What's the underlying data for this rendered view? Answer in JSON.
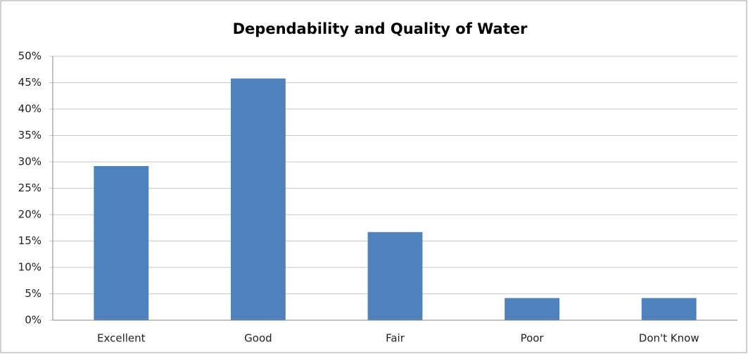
{
  "chart_data": {
    "type": "bar",
    "title": "Dependability and Quality of Water",
    "categories": [
      "Excellent",
      "Good",
      "Fair",
      "Poor",
      "Don't Know"
    ],
    "values": [
      29.2,
      45.8,
      16.7,
      4.2,
      4.2
    ],
    "color": "#4f81bd",
    "ylim": [
      0,
      50
    ],
    "yticks": [
      {
        "value": 0,
        "label": "0%"
      },
      {
        "value": 5,
        "label": "5%"
      },
      {
        "value": 10,
        "label": "10%"
      },
      {
        "value": 15,
        "label": "15%"
      },
      {
        "value": 20,
        "label": "20%"
      },
      {
        "value": 25,
        "label": "25%"
      },
      {
        "value": 30,
        "label": "30%"
      },
      {
        "value": 35,
        "label": "35%"
      },
      {
        "value": 40,
        "label": "40%"
      },
      {
        "value": 45,
        "label": "45%"
      },
      {
        "value": 50,
        "label": "50%"
      }
    ],
    "grid": true
  }
}
